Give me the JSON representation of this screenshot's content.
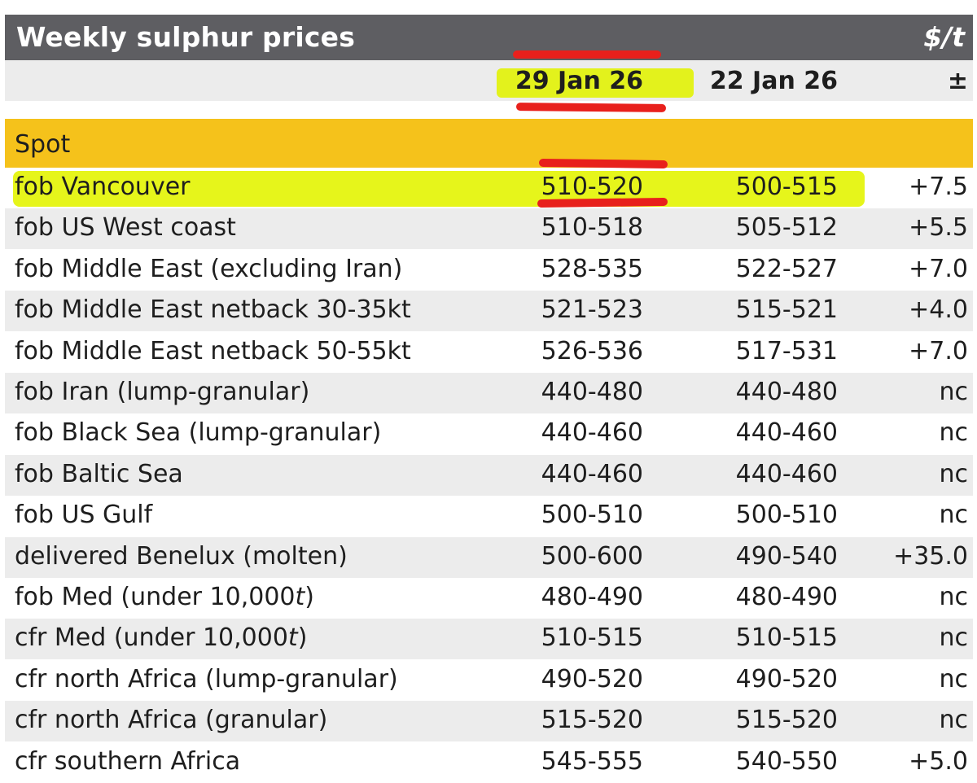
{
  "title": "Weekly sulphur prices",
  "unit": "$/t",
  "columns": {
    "current": "29 Jan 26",
    "previous": "22 Jan 26",
    "change": "±"
  },
  "section": "Spot",
  "rows": [
    {
      "name": "fob Vancouver",
      "current": "510-520",
      "previous": "500-515",
      "change": "+7.5"
    },
    {
      "name": "fob US West coast",
      "current": "510-518",
      "previous": "505-512",
      "change": "+5.5"
    },
    {
      "name": "fob Middle East (excluding Iran)",
      "current": "528-535",
      "previous": "522-527",
      "change": "+7.0"
    },
    {
      "name": "fob Middle East netback 30-35kt",
      "current": "521-523",
      "previous": "515-521",
      "change": "+4.0"
    },
    {
      "name": "fob Middle East netback 50-55kt",
      "current": "526-536",
      "previous": "517-531",
      "change": "+7.0"
    },
    {
      "name": "fob Iran (lump-granular)",
      "current": "440-480",
      "previous": "440-480",
      "change": "nc"
    },
    {
      "name": "fob Black Sea (lump-granular)",
      "current": "440-460",
      "previous": "440-460",
      "change": "nc"
    },
    {
      "name": "fob Baltic Sea",
      "current": "440-460",
      "previous": "440-460",
      "change": "nc"
    },
    {
      "name": "fob US Gulf",
      "current": "500-510",
      "previous": "500-510",
      "change": "nc"
    },
    {
      "name": "delivered Benelux (molten)",
      "current": "500-600",
      "previous": "490-540",
      "change": "+35.0"
    },
    {
      "name": "fob Med (under 10,000t)",
      "current": "480-490",
      "previous": "480-490",
      "change": "nc"
    },
    {
      "name": "cfr Med (under 10,000t)",
      "current": "510-515",
      "previous": "510-515",
      "change": "nc"
    },
    {
      "name": "cfr north Africa (lump-granular)",
      "current": "490-520",
      "previous": "490-520",
      "change": "nc"
    },
    {
      "name": "cfr north Africa (granular)",
      "current": "515-520",
      "previous": "515-520",
      "change": "nc"
    },
    {
      "name": "cfr southern Africa",
      "current": "545-555",
      "previous": "540-550",
      "change": "+5.0"
    }
  ]
}
